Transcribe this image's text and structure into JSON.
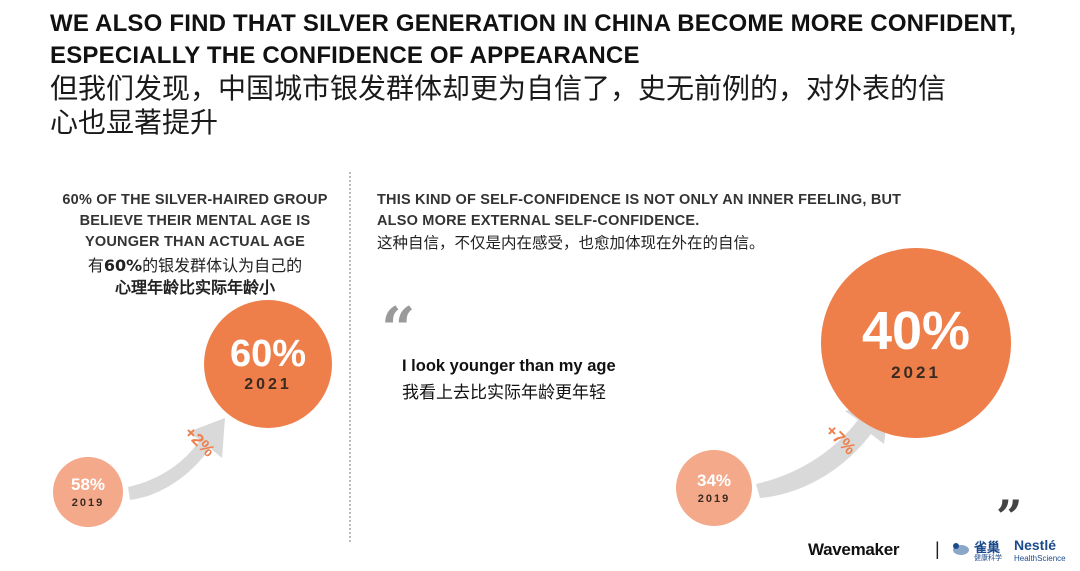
{
  "header": {
    "title_en_line1": "WE ALSO FIND THAT SILVER GENERATION IN CHINA BECOME MORE CONFIDENT,",
    "title_en_line2": "ESPECIALLY THE CONFIDENCE OF APPEARANCE",
    "title_zh_line1": "但我们发现，中国城市银发群体却更为自信了，史无前例的，对外表的信",
    "title_zh_line2": "心也显著提升"
  },
  "left_panel": {
    "heading_line1": "60% OF THE SILVER-HAIRED GROUP",
    "heading_line2": "BELIEVE THEIR MENTAL AGE IS",
    "heading_line3": "YOUNGER THAN ACTUAL AGE",
    "zh_line1_a": "有",
    "zh_line1_b": "60%",
    "zh_line1_c": "的银发群体认为自己的",
    "zh_line2": "心理年龄比实际年龄小",
    "current": {
      "value": "60%",
      "year": "2021"
    },
    "previous": {
      "value": "58%",
      "year": "2019"
    },
    "change": "+2%"
  },
  "right_panel": {
    "heading_line1": "THIS KIND OF SELF-CONFIDENCE IS NOT ONLY AN INNER FEELING, BUT",
    "heading_line2": "ALSO MORE EXTERNAL SELF-CONFIDENCE.",
    "zh_line": "这种自信，不仅是内在感受，也愈加体现在外在的自信。",
    "quote_mark": "“",
    "quote_en": "I look younger than my age",
    "quote_zh": "我看上去比实际年龄更年轻",
    "current": {
      "value": "40%",
      "year": "2021"
    },
    "previous": {
      "value": "34%",
      "year": "2019"
    },
    "change": "+7%"
  },
  "footer": {
    "close_quote": "”",
    "brand_wavemaker": "Wavemaker",
    "separator": "|",
    "brand_que": "雀巢",
    "brand_que_sub": "健康科学",
    "brand_nestle": "Nestlé",
    "brand_nestle_sub": "HealthScience"
  },
  "colors": {
    "accent": "#ee7f4b",
    "accent_light": "#f4a98a",
    "arrow": "#d9d9d9",
    "brand_blue": "#1c4b8c"
  }
}
